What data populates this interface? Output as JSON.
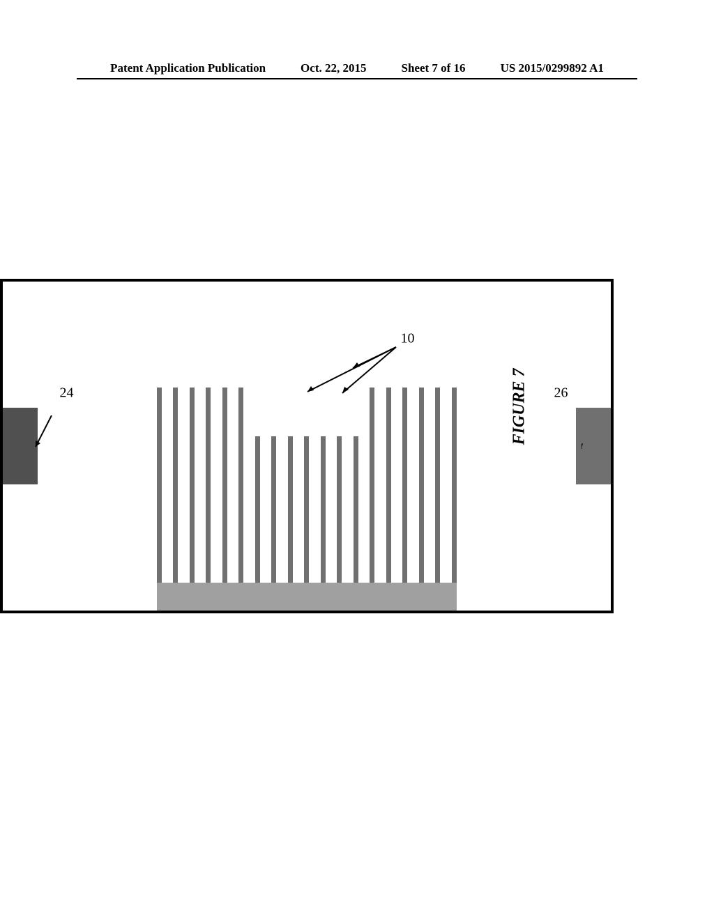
{
  "header": {
    "publication_type": "Patent Application Publication",
    "date": "Oct. 22, 2015",
    "sheet_info": "Sheet 7 of 16",
    "pub_number": "US 2015/0299892 A1"
  },
  "figure": {
    "caption": "FIGURE 7",
    "labels": {
      "ref_26": "26",
      "ref_10": "10",
      "ref_24": "24"
    },
    "styling": {
      "border_color": "#000000",
      "border_width": 4,
      "block_top_color": "#707070",
      "block_bottom_color": "#505050",
      "base_plate_color": "#a0a0a0",
      "fin_color": "#707070",
      "fin_count": 19,
      "fin_lengths": [
        "long",
        "long",
        "long",
        "long",
        "long",
        "long",
        "short",
        "short",
        "short",
        "short",
        "short",
        "short",
        "short",
        "long",
        "long",
        "long",
        "long",
        "long",
        "long"
      ]
    }
  }
}
